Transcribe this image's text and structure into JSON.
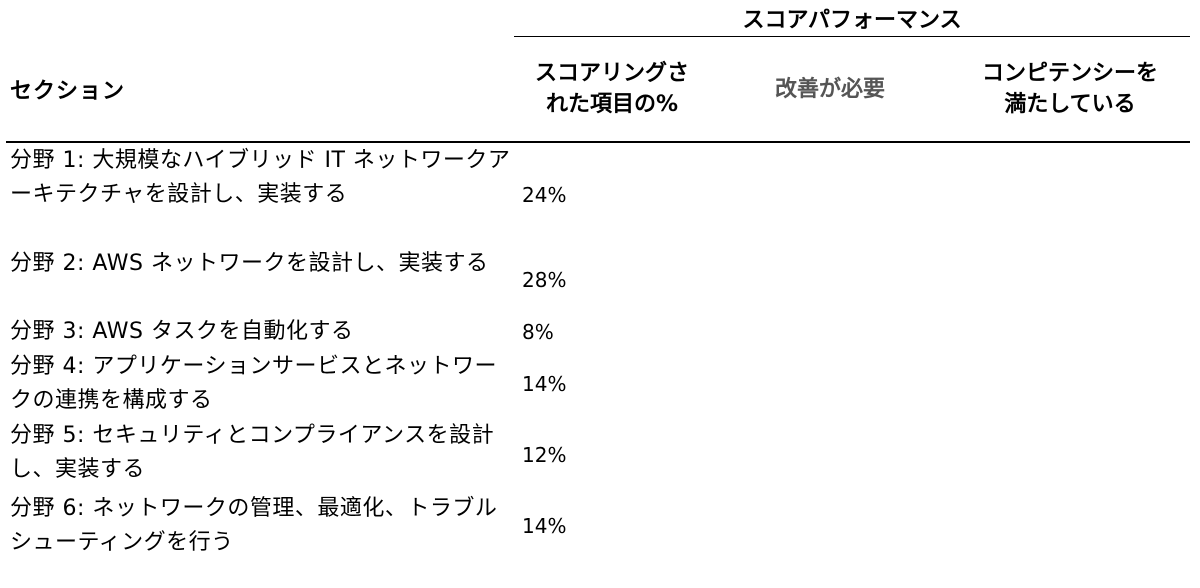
{
  "header": {
    "super_title": "スコアパフォーマンス",
    "section_label": "セクション",
    "col_scored": "スコアリングされた項目の%",
    "col_needs_improvement": "改善が必要",
    "col_meets_competency": "コンピテンシーを満たしている"
  },
  "rows": [
    {
      "section": "分野 1: 大規模なハイブリッド IT ネットワークアーキテクチャを設計し、実装する",
      "percent": "24%",
      "rating": "needs_improvement"
    },
    {
      "section": "分野 2: AWS ネットワークを設計し、実装する",
      "percent": "28%",
      "rating": "needs_improvement"
    },
    {
      "section": "分野 3: AWS タスクを自動化する",
      "percent": "8%",
      "rating": "meets_competency"
    },
    {
      "section": "分野 4: アプリケーションサービスとネットワークの連携を構成する",
      "percent": "14%",
      "rating": "meets_competency"
    },
    {
      "section": "分野 5: セキュリティとコンプライアンスを設計し、実装する",
      "percent": "12%",
      "rating": "needs_improvement"
    },
    {
      "section": "分野 6: ネットワークの管理、最適化、トラブルシューティングを行う",
      "percent": "14%",
      "rating": "meets_competency"
    }
  ],
  "colors": {
    "indicator_fill": "#f29e38",
    "needs_improvement_header": "#555555"
  }
}
